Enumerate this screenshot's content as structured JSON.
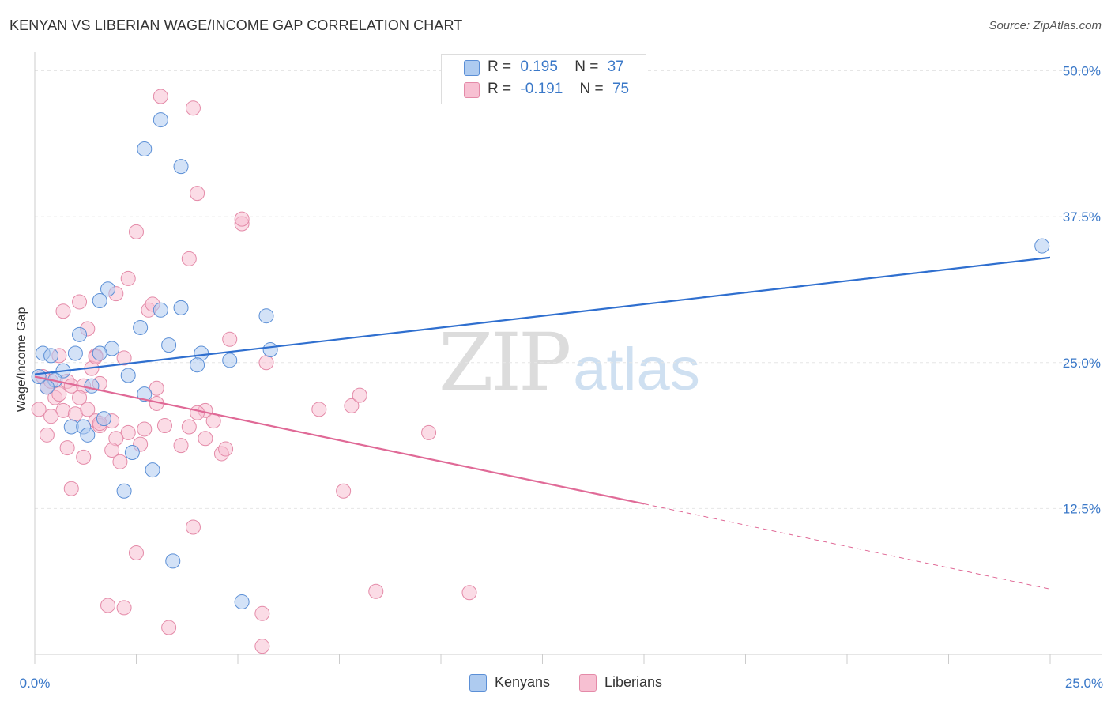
{
  "title": "KENYAN VS LIBERIAN WAGE/INCOME GAP CORRELATION CHART",
  "source": "Source: ZipAtlas.com",
  "watermark": {
    "zip": "ZIP",
    "atlas": "atlas"
  },
  "legend": {
    "kenyans": {
      "r_label": "R =",
      "r_value": "0.195",
      "n_label": "N =",
      "n_value": "37"
    },
    "liberians": {
      "r_label": "R =",
      "r_value": "-0.191",
      "n_label": "N =",
      "n_value": "75"
    }
  },
  "colors": {
    "kenyans_fill": "#aecbf0",
    "kenyans_stroke": "#5b8fd6",
    "kenyans_line": "#2f6fcf",
    "liberians_fill": "#f7c0d2",
    "liberians_stroke": "#e48aa8",
    "liberians_line": "#e06a97",
    "tick_label": "#3a78c8",
    "grid": "#e6e6e6"
  },
  "chart_data": {
    "type": "scatter",
    "title": "KENYAN VS LIBERIAN WAGE/INCOME GAP CORRELATION CHART",
    "xlabel": "",
    "ylabel": "Wage/Income Gap",
    "xlim": [
      0,
      25
    ],
    "ylim": [
      0,
      52
    ],
    "x_tick_labels": [
      "0.0%",
      "25.0%"
    ],
    "y_ticks": [
      12.5,
      25.0,
      37.5,
      50.0
    ],
    "y_tick_labels": [
      "12.5%",
      "25.0%",
      "37.5%",
      "50.0%"
    ],
    "grid": true,
    "legend_position": "bottom-center",
    "series": [
      {
        "name": "Kenyans",
        "trend": {
          "x0": 0,
          "y0": 24.0,
          "x1": 25,
          "y1": 34.0
        },
        "points": [
          [
            0.2,
            25.8
          ],
          [
            0.4,
            25.6
          ],
          [
            1.0,
            25.8
          ],
          [
            0.7,
            24.3
          ],
          [
            0.5,
            23.5
          ],
          [
            0.3,
            22.9
          ],
          [
            1.4,
            23.0
          ],
          [
            1.1,
            27.4
          ],
          [
            1.8,
            31.3
          ],
          [
            1.9,
            26.2
          ],
          [
            2.6,
            28.0
          ],
          [
            3.1,
            29.5
          ],
          [
            3.6,
            29.7
          ],
          [
            1.6,
            30.3
          ],
          [
            1.6,
            25.8
          ],
          [
            2.3,
            23.9
          ],
          [
            2.7,
            22.3
          ],
          [
            3.3,
            26.5
          ],
          [
            4.1,
            25.8
          ],
          [
            4.0,
            24.8
          ],
          [
            4.8,
            25.2
          ],
          [
            5.7,
            29.0
          ],
          [
            5.8,
            26.1
          ],
          [
            0.9,
            19.5
          ],
          [
            1.2,
            19.5
          ],
          [
            1.3,
            18.8
          ],
          [
            1.7,
            20.2
          ],
          [
            2.4,
            17.3
          ],
          [
            2.9,
            15.8
          ],
          [
            2.2,
            14.0
          ],
          [
            3.4,
            8.0
          ],
          [
            5.1,
            4.5
          ],
          [
            3.1,
            45.8
          ],
          [
            2.7,
            43.3
          ],
          [
            3.6,
            41.8
          ],
          [
            24.8,
            35.0
          ],
          [
            0.1,
            23.8
          ]
        ]
      },
      {
        "name": "Liberians",
        "trend": {
          "x0": 0,
          "y0": 23.8,
          "x1": 15,
          "y1": 12.9
        },
        "trend_extension": {
          "x0": 15,
          "y0": 12.9,
          "x1": 25,
          "y1": 5.6
        },
        "points": [
          [
            0.1,
            21.0
          ],
          [
            0.2,
            23.8
          ],
          [
            0.3,
            22.9
          ],
          [
            0.4,
            23.4
          ],
          [
            0.6,
            25.6
          ],
          [
            0.8,
            23.4
          ],
          [
            0.7,
            29.4
          ],
          [
            1.1,
            30.2
          ],
          [
            1.3,
            27.9
          ],
          [
            1.5,
            25.6
          ],
          [
            0.9,
            23.0
          ],
          [
            1.2,
            23.0
          ],
          [
            1.6,
            23.2
          ],
          [
            1.4,
            24.5
          ],
          [
            0.5,
            22.0
          ],
          [
            0.7,
            20.9
          ],
          [
            1.0,
            20.6
          ],
          [
            1.3,
            21.0
          ],
          [
            1.5,
            20.0
          ],
          [
            0.4,
            20.4
          ],
          [
            1.6,
            19.6
          ],
          [
            1.9,
            20.0
          ],
          [
            2.3,
            19.0
          ],
          [
            2.7,
            19.3
          ],
          [
            2.0,
            18.5
          ],
          [
            0.3,
            18.8
          ],
          [
            0.8,
            17.7
          ],
          [
            1.2,
            16.9
          ],
          [
            1.9,
            17.5
          ],
          [
            2.1,
            16.5
          ],
          [
            0.9,
            14.2
          ],
          [
            2.2,
            25.4
          ],
          [
            2.8,
            29.5
          ],
          [
            2.9,
            30.0
          ],
          [
            2.0,
            30.9
          ],
          [
            2.3,
            32.2
          ],
          [
            3.0,
            22.8
          ],
          [
            3.0,
            21.5
          ],
          [
            3.2,
            19.6
          ],
          [
            3.6,
            17.9
          ],
          [
            3.8,
            19.5
          ],
          [
            4.2,
            18.5
          ],
          [
            4.2,
            20.9
          ],
          [
            4.4,
            20.0
          ],
          [
            4.6,
            17.2
          ],
          [
            4.7,
            17.6
          ],
          [
            4.8,
            27.0
          ],
          [
            5.7,
            25.0
          ],
          [
            2.5,
            36.2
          ],
          [
            3.8,
            33.9
          ],
          [
            4.0,
            39.5
          ],
          [
            5.1,
            36.9
          ],
          [
            5.1,
            37.3
          ],
          [
            3.1,
            47.8
          ],
          [
            3.9,
            46.8
          ],
          [
            2.5,
            8.7
          ],
          [
            3.9,
            10.9
          ],
          [
            1.8,
            4.2
          ],
          [
            2.2,
            4.0
          ],
          [
            3.3,
            2.3
          ],
          [
            5.6,
            3.5
          ],
          [
            5.6,
            0.7
          ],
          [
            7.0,
            21.0
          ],
          [
            7.8,
            21.3
          ],
          [
            8.0,
            22.2
          ],
          [
            7.6,
            14.0
          ],
          [
            9.7,
            19.0
          ],
          [
            8.4,
            5.4
          ],
          [
            10.7,
            5.3
          ],
          [
            1.5,
            25.5
          ],
          [
            2.6,
            18.0
          ],
          [
            0.6,
            22.3
          ],
          [
            1.1,
            22.0
          ],
          [
            1.6,
            19.8
          ],
          [
            4.0,
            20.7
          ]
        ]
      }
    ]
  }
}
